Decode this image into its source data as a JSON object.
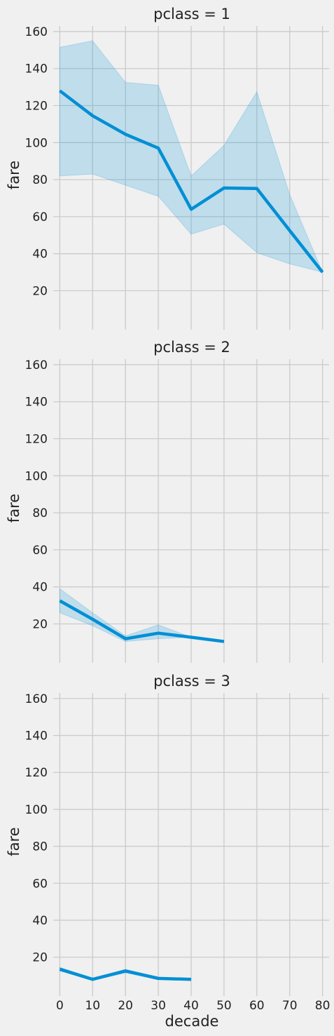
{
  "colors": {
    "background": "#f0f0f0",
    "grid": "#cbcbcb",
    "line": "#008fd5",
    "band": "#008fd5"
  },
  "chart_data": [
    {
      "type": "line",
      "title": "pclass = 1",
      "xlabel": "",
      "ylabel": "fare",
      "x": [
        0,
        10,
        20,
        30,
        40,
        50,
        60,
        70,
        80
      ],
      "y": [
        128,
        114.5,
        104.5,
        97,
        64,
        75.5,
        75.2,
        52.5,
        30
      ],
      "ci_low": [
        82,
        83,
        77,
        71,
        50.5,
        56,
        40.5,
        34.5,
        30
      ],
      "ci_high": [
        151.5,
        155,
        132.5,
        131,
        82,
        98.5,
        127.5,
        72,
        30
      ],
      "xlim": [
        -2,
        82
      ],
      "ylim": [
        2,
        163
      ],
      "yticks": [
        20,
        40,
        60,
        80,
        100,
        120,
        140,
        160
      ],
      "xticks": [
        0,
        10,
        20,
        30,
        40,
        50,
        60,
        70,
        80
      ],
      "show_xtick_labels": false,
      "grid": true
    },
    {
      "type": "line",
      "title": "pclass = 2",
      "xlabel": "",
      "ylabel": "fare",
      "x": [
        0,
        10,
        20,
        30,
        40,
        50
      ],
      "y": [
        32.5,
        22.5,
        12,
        15,
        12.8,
        10.5
      ],
      "ci_low": [
        26,
        19,
        10.5,
        12,
        12.8,
        10.5
      ],
      "ci_high": [
        39,
        26,
        13.5,
        19.5,
        12.8,
        10.5
      ],
      "xlim": [
        -2,
        82
      ],
      "ylim": [
        2,
        163
      ],
      "yticks": [
        20,
        40,
        60,
        80,
        100,
        120,
        140,
        160
      ],
      "xticks": [
        0,
        10,
        20,
        30,
        40,
        50,
        60,
        70,
        80
      ],
      "show_xtick_labels": false,
      "grid": true
    },
    {
      "type": "line",
      "title": "pclass = 3",
      "xlabel": "decade",
      "ylabel": "fare",
      "x": [
        0,
        10,
        20,
        30,
        40
      ],
      "y": [
        13.5,
        8,
        12.5,
        8.5,
        8
      ],
      "ci_low": [
        12.5,
        7.5,
        11.5,
        8,
        8
      ],
      "ci_high": [
        14.5,
        8.5,
        13.5,
        9,
        8
      ],
      "xlim": [
        -2,
        82
      ],
      "ylim": [
        2,
        163
      ],
      "yticks": [
        20,
        40,
        60,
        80,
        100,
        120,
        140,
        160
      ],
      "xticks": [
        0,
        10,
        20,
        30,
        40,
        50,
        60,
        70,
        80
      ],
      "show_xtick_labels": true,
      "grid": true
    }
  ]
}
